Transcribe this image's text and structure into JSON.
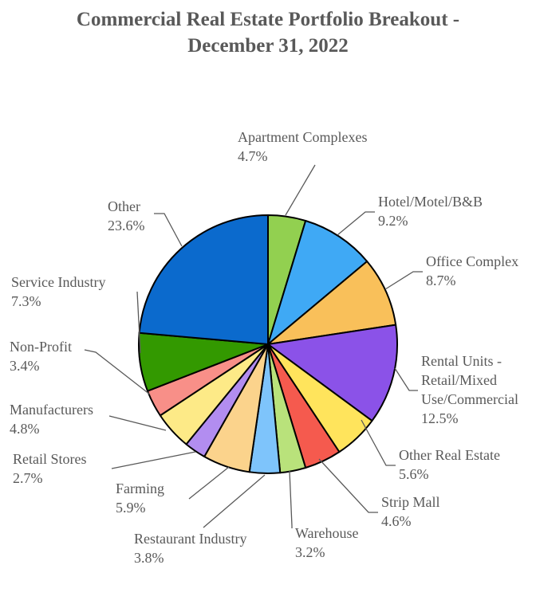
{
  "chart_data": {
    "type": "pie",
    "title_lines": [
      "Commercial Real Estate Portfolio Breakout -",
      "December 31, 2022"
    ],
    "slices": [
      {
        "label": [
          "Apartment Complexes"
        ],
        "pct": "4.7%",
        "value": 4.7,
        "color": "#92d050"
      },
      {
        "label": [
          "Hotel/Motel/B&B"
        ],
        "pct": "9.2%",
        "value": 9.2,
        "color": "#3fa9f5"
      },
      {
        "label": [
          "Office Complex"
        ],
        "pct": "8.7%",
        "value": 8.7,
        "color": "#f9c05a"
      },
      {
        "label": [
          "Rental Units -",
          "Retail/Mixed",
          "Use/Commercial"
        ],
        "pct": "12.5%",
        "value": 12.5,
        "color": "#8b52e8"
      },
      {
        "label": [
          "Other  Real Estate"
        ],
        "pct": "5.6%",
        "value": 5.6,
        "color": "#ffe45c"
      },
      {
        "label": [
          "Strip Mall"
        ],
        "pct": "4.6%",
        "value": 4.6,
        "color": "#f55a4e"
      },
      {
        "label": [
          "Warehouse"
        ],
        "pct": "3.2%",
        "value": 3.2,
        "color": "#b9e27b"
      },
      {
        "label": [
          "Restaurant Industry"
        ],
        "pct": "3.8%",
        "value": 3.8,
        "color": "#7ec4fb"
      },
      {
        "label": [
          "Farming"
        ],
        "pct": "5.9%",
        "value": 5.9,
        "color": "#fbd38c"
      },
      {
        "label": [
          "Retail Stores"
        ],
        "pct": "2.7%",
        "value": 2.7,
        "color": "#b28df0"
      },
      {
        "label": [
          "Manufacturers"
        ],
        "pct": "4.8%",
        "value": 4.8,
        "color": "#fdea87"
      },
      {
        "label": [
          "Non-Profit"
        ],
        "pct": "3.4%",
        "value": 3.4,
        "color": "#f88f88"
      },
      {
        "label": [
          "Service Industry"
        ],
        "pct": "7.3%",
        "value": 7.3,
        "color": "#339900"
      },
      {
        "label": [
          "Other"
        ],
        "pct": "23.6%",
        "value": 23.6,
        "color": "#0b6acd"
      }
    ],
    "legend": "none",
    "data_labels": "outside with leader lines"
  }
}
